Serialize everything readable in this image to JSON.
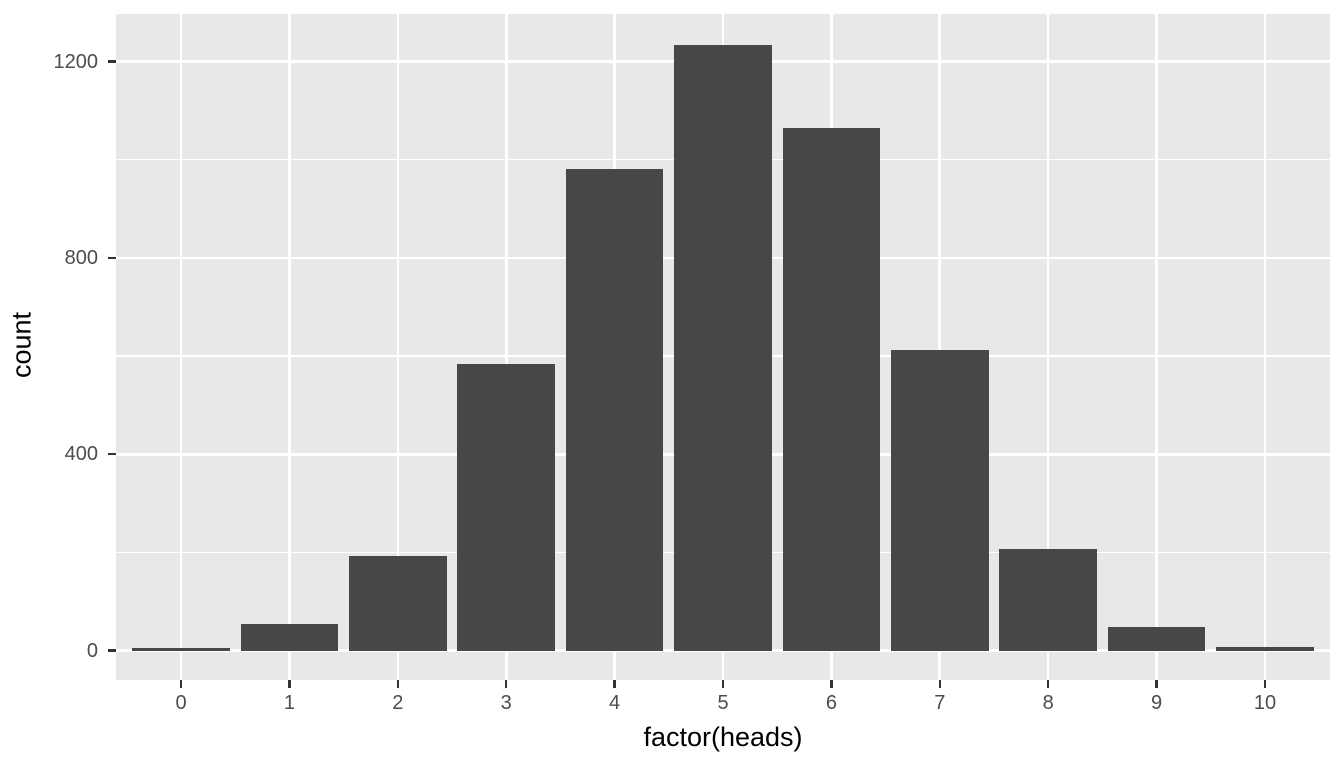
{
  "figure": {
    "background_color": "#ffffff",
    "panel_background_color": "#e8e8e8",
    "grid_color": "#ffffff",
    "bar_color": "#474747",
    "tick_mark_color": "#333333",
    "tick_label_color": "#4d4d4d",
    "axis_title_color": "#000000"
  },
  "chart_data": {
    "type": "bar",
    "title": "",
    "xlabel": "factor(heads)",
    "ylabel": "count",
    "categories": [
      "0",
      "1",
      "2",
      "3",
      "4",
      "5",
      "6",
      "7",
      "8",
      "9",
      "10"
    ],
    "values": [
      6,
      54,
      193,
      584,
      981,
      1234,
      1065,
      613,
      207,
      48,
      8
    ],
    "ylim": [
      -60,
      1297
    ],
    "y_major_ticks": [
      0,
      400,
      800,
      1200
    ],
    "y_minor_ticks": [
      200,
      600,
      1000
    ],
    "y_tick_labels": [
      "0",
      "400",
      "800",
      "1200"
    ],
    "bar_width_fraction": 0.9,
    "grid": "on",
    "legend": "none",
    "theme": "ggplot-grey"
  }
}
